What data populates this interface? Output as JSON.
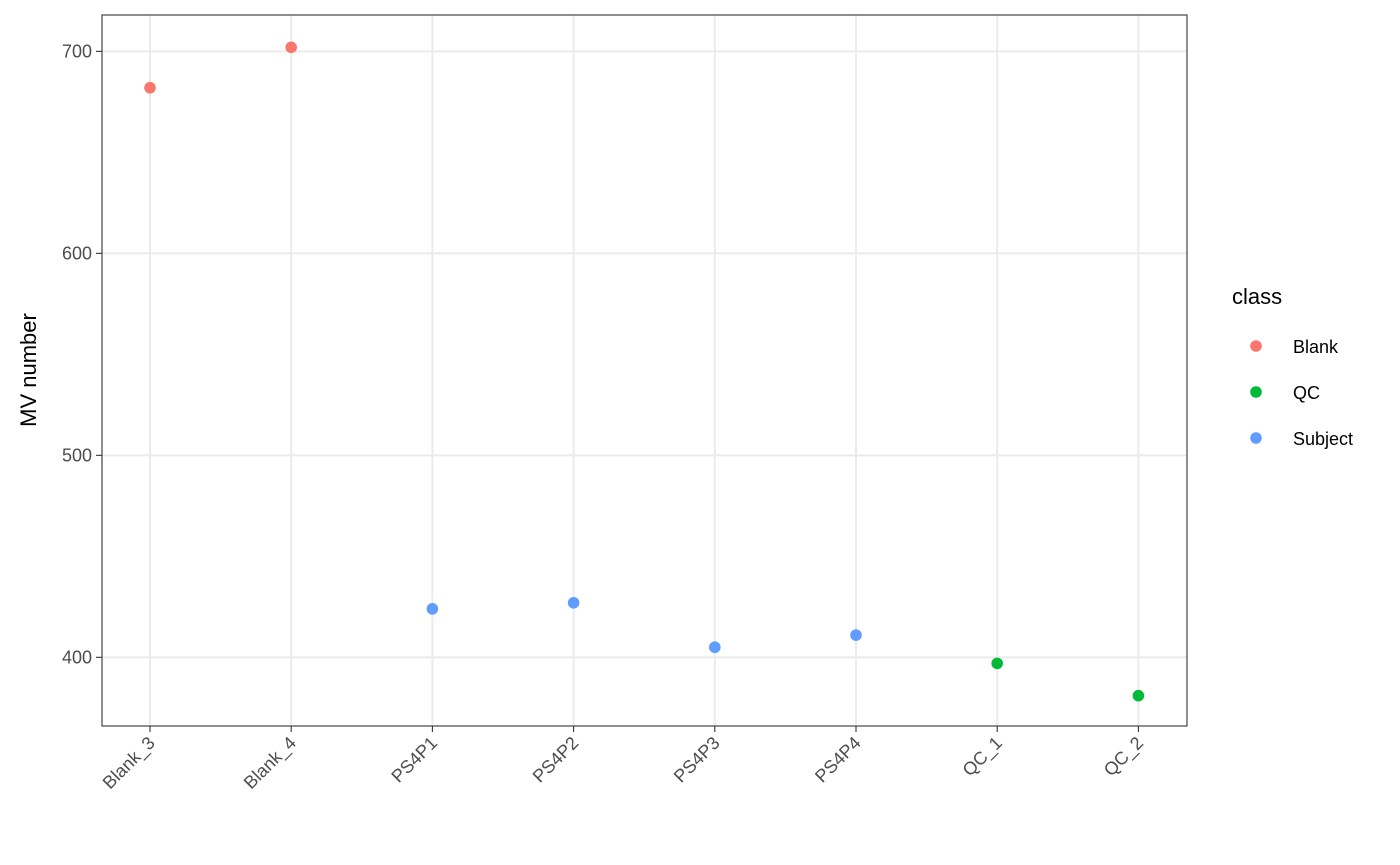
{
  "chart_data": {
    "type": "scatter",
    "categories": [
      "Blank_3",
      "Blank_4",
      "PS4P1",
      "PS4P2",
      "PS4P3",
      "PS4P4",
      "QC_1",
      "QC_2"
    ],
    "ylabel": "MV number",
    "xlabel": "",
    "y_ticks": [
      400,
      500,
      600,
      700
    ],
    "ylim": [
      366,
      718
    ],
    "grid": true,
    "legend": {
      "title": "class",
      "placement": "right",
      "entries": [
        {
          "label": "Blank",
          "color": "#F8766D"
        },
        {
          "label": "QC",
          "color": "#00BA38"
        },
        {
          "label": "Subject",
          "color": "#619CFF"
        }
      ]
    },
    "points": [
      {
        "x": "Blank_3",
        "y": 682,
        "class": "Blank"
      },
      {
        "x": "Blank_4",
        "y": 702,
        "class": "Blank"
      },
      {
        "x": "PS4P1",
        "y": 424,
        "class": "Subject"
      },
      {
        "x": "PS4P2",
        "y": 427,
        "class": "Subject"
      },
      {
        "x": "PS4P3",
        "y": 405,
        "class": "Subject"
      },
      {
        "x": "PS4P4",
        "y": 411,
        "class": "Subject"
      },
      {
        "x": "QC_1",
        "y": 397,
        "class": "QC"
      },
      {
        "x": "QC_2",
        "y": 381,
        "class": "QC"
      }
    ]
  }
}
